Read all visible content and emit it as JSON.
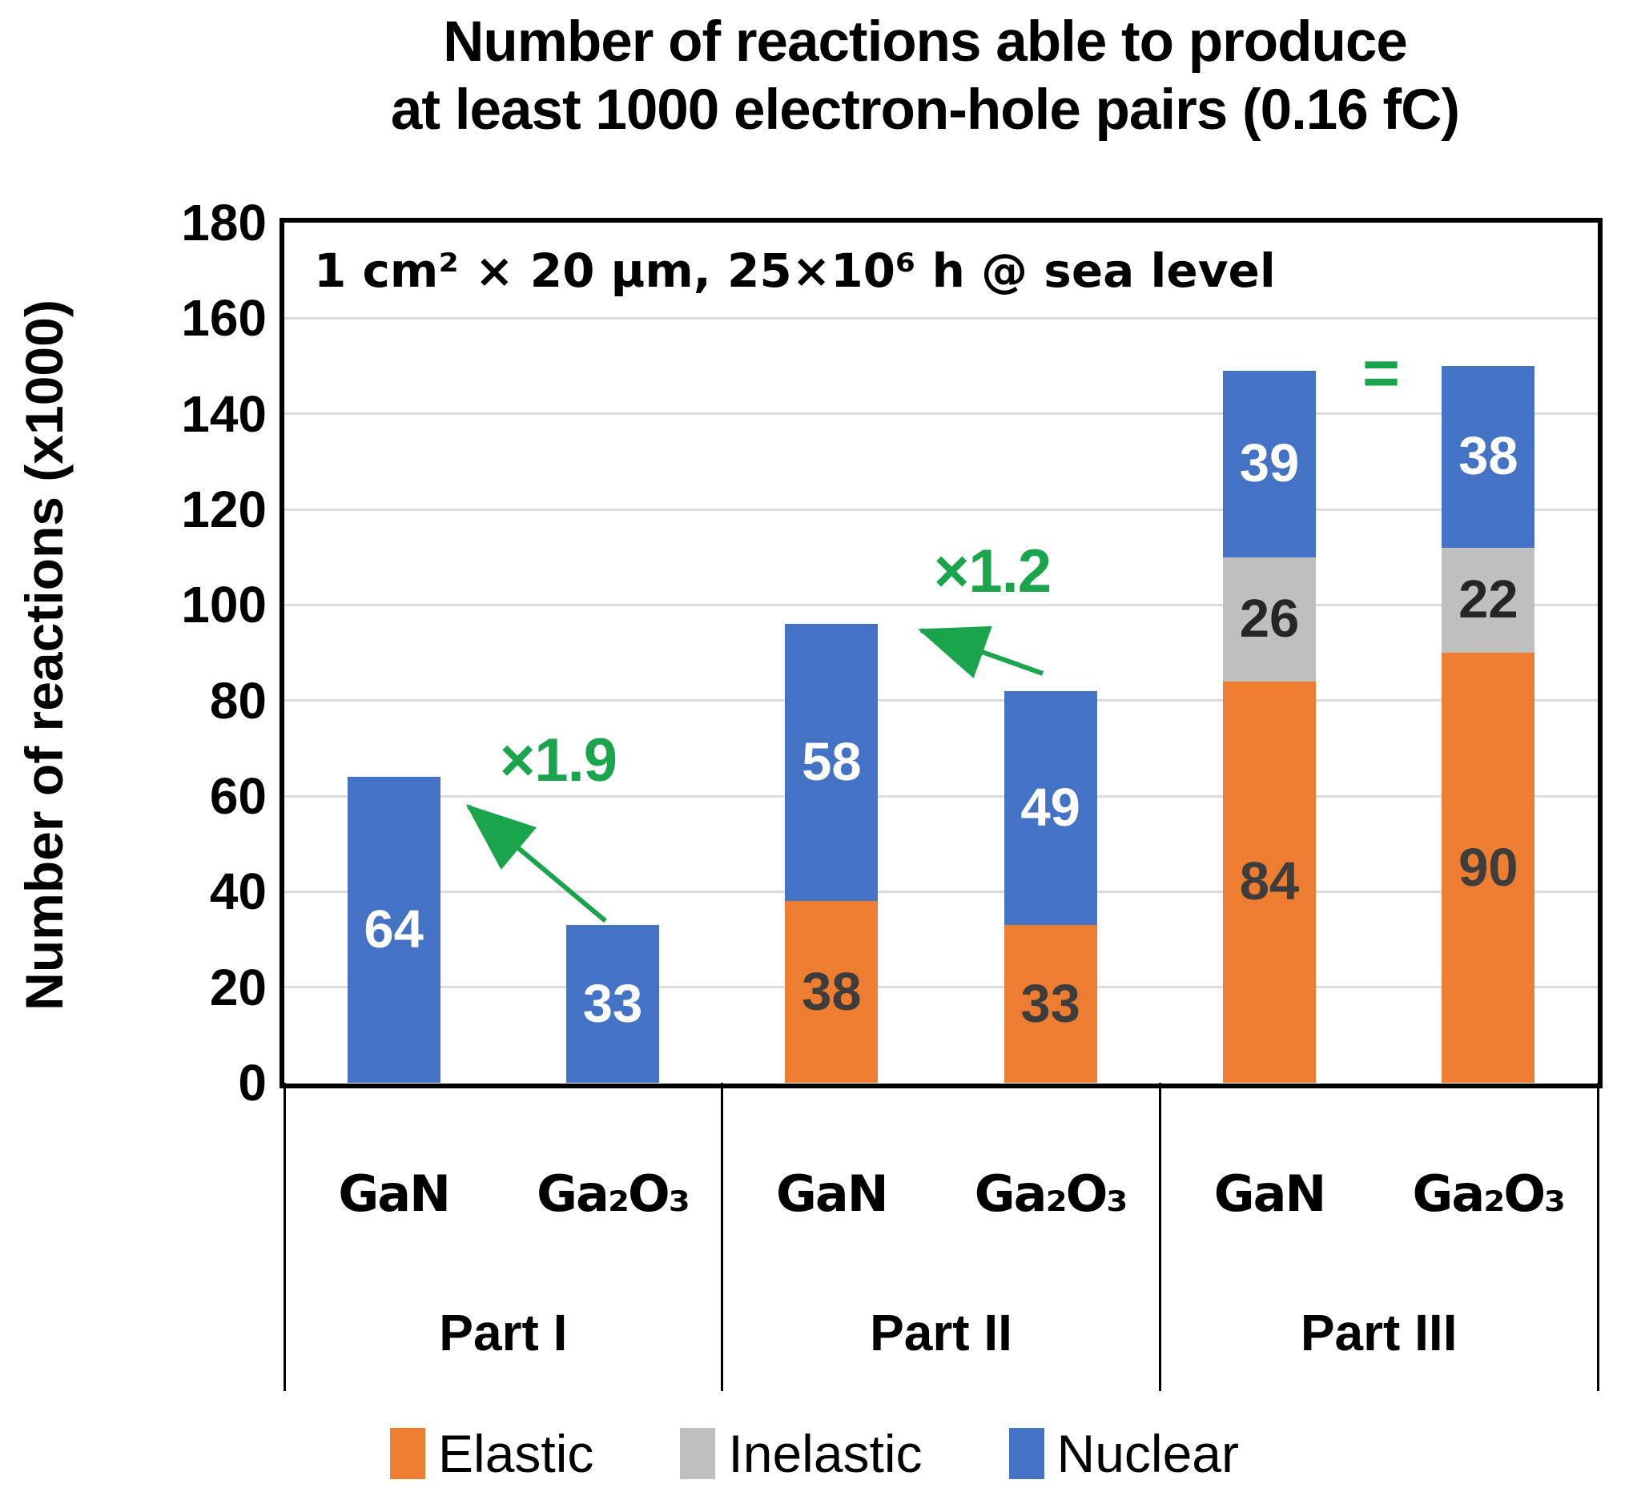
{
  "title": {
    "lines": [
      "Number of reactions able to produce",
      "at least 1000 electron-hole pairs (0.16 fC)"
    ]
  },
  "chart_data": {
    "type": "bar",
    "stacked": true,
    "title": "Number of reactions able to produce at least 1000 electron-hole pairs (0.16 fC)",
    "inner_annotation": "1 cm² × 20 µm, 25×10⁶ h @ sea level",
    "ylabel": "Number of reactions (x1000)",
    "xlabel": "",
    "ylim": [
      0,
      180
    ],
    "ytick_step": 20,
    "yticks": [
      0,
      20,
      40,
      60,
      80,
      100,
      120,
      140,
      160,
      180
    ],
    "grid": true,
    "legend_position": "bottom",
    "series": [
      {
        "name": "Elastic",
        "key": "elastic",
        "color": "#ED7D31",
        "label_color": "#3D3D3D"
      },
      {
        "name": "Inelastic",
        "key": "inelastic",
        "color": "#BFBFBF",
        "label_color": "#262626"
      },
      {
        "name": "Nuclear",
        "key": "nuclear",
        "color": "#4472C4",
        "label_color": "#FFFFFF"
      }
    ],
    "groups": [
      {
        "label": "Part I",
        "annotation": "×1.9",
        "bars": [
          {
            "category": "GaN",
            "values": {
              "elastic": null,
              "inelastic": null,
              "nuclear": 64
            }
          },
          {
            "category": "Ga₂O₃",
            "values": {
              "elastic": null,
              "inelastic": null,
              "nuclear": 33
            }
          }
        ]
      },
      {
        "label": "Part II",
        "annotation": "×1.2",
        "bars": [
          {
            "category": "GaN",
            "values": {
              "elastic": 38,
              "inelastic": null,
              "nuclear": 58
            }
          },
          {
            "category": "Ga₂O₃",
            "values": {
              "elastic": 33,
              "inelastic": null,
              "nuclear": 49
            }
          }
        ]
      },
      {
        "label": "Part III",
        "annotation": "=",
        "bars": [
          {
            "category": "GaN",
            "values": {
              "elastic": 84,
              "inelastic": 26,
              "nuclear": 39
            }
          },
          {
            "category": "Ga₂O₃",
            "values": {
              "elastic": 90,
              "inelastic": 22,
              "nuclear": 38
            }
          }
        ]
      }
    ]
  },
  "colors": {
    "elastic": "#ED7D31",
    "inelastic": "#BFBFBF",
    "nuclear": "#4472C4",
    "annotation_green": "#1AA44C",
    "gridline": "#DCDCDC",
    "axis": "#000000"
  }
}
